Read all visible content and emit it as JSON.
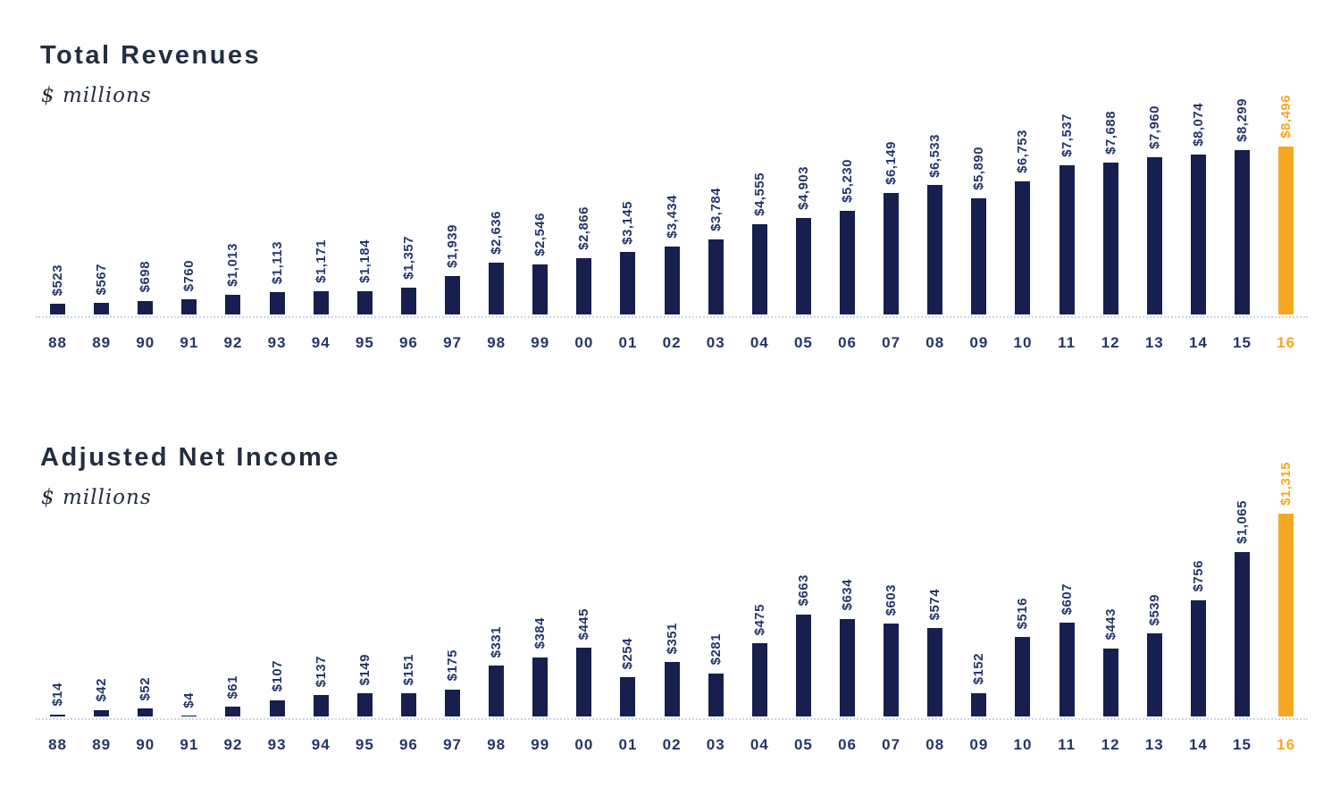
{
  "colors": {
    "bar_navy": "#161f4e",
    "label_navy": "#25356b",
    "highlight_orange": "#f6a722",
    "baseline_dots": "#c7d7e6",
    "title_text": "#232e42",
    "background": "#ffffff"
  },
  "chart_data": [
    {
      "type": "bar",
      "title": "Total Revenues",
      "subtitle": "$ millions",
      "categories": [
        "88",
        "89",
        "90",
        "91",
        "92",
        "93",
        "94",
        "95",
        "96",
        "97",
        "98",
        "99",
        "00",
        "01",
        "02",
        "03",
        "04",
        "05",
        "06",
        "07",
        "08",
        "09",
        "10",
        "11",
        "12",
        "13",
        "14",
        "15",
        "16"
      ],
      "values": [
        523,
        567,
        698,
        760,
        1013,
        1113,
        1171,
        1184,
        1357,
        1939,
        2636,
        2546,
        2866,
        3145,
        3434,
        3784,
        4555,
        4903,
        5230,
        6149,
        6533,
        5890,
        6753,
        7537,
        7688,
        7960,
        8074,
        8299,
        8496
      ],
      "value_labels": [
        "$523",
        "$567",
        "$698",
        "$760",
        "$1,013",
        "$1,113",
        "$1,171",
        "$1,184",
        "$1,357",
        "$1,939",
        "$2,636",
        "$2,546",
        "$2,866",
        "$3,145",
        "$3,434",
        "$3,784",
        "$4,555",
        "$4,903",
        "$5,230",
        "$6,149",
        "$6,533",
        "$5,890",
        "$6,753",
        "$7,537",
        "$7,688",
        "$7,960",
        "$8,074",
        "$8,299",
        "$8,496"
      ],
      "highlight_index": 28,
      "xlabel": "",
      "ylabel": "$ millions",
      "ylim": [
        0,
        8500
      ],
      "grid": false,
      "legend": "none",
      "value_labels_rotated_90": true
    },
    {
      "type": "bar",
      "title": "Adjusted Net Income",
      "subtitle": "$ millions",
      "categories": [
        "88",
        "89",
        "90",
        "91",
        "92",
        "93",
        "94",
        "95",
        "96",
        "97",
        "98",
        "99",
        "00",
        "01",
        "02",
        "03",
        "04",
        "05",
        "06",
        "07",
        "08",
        "09",
        "10",
        "11",
        "12",
        "13",
        "14",
        "15",
        "16"
      ],
      "values": [
        14,
        42,
        52,
        4,
        61,
        107,
        137,
        149,
        151,
        175,
        331,
        384,
        445,
        254,
        351,
        281,
        475,
        663,
        634,
        603,
        574,
        152,
        516,
        607,
        443,
        539,
        756,
        1065,
        1315
      ],
      "value_labels": [
        "$14",
        "$42",
        "$52",
        "$4",
        "$61",
        "$107",
        "$137",
        "$149",
        "$151",
        "$175",
        "$331",
        "$384",
        "$445",
        "$254",
        "$351",
        "$281",
        "$475",
        "$663",
        "$634",
        "$603",
        "$574",
        "$152",
        "$516",
        "$607",
        "$443",
        "$539",
        "$756",
        "$1,065",
        "$1,315"
      ],
      "highlight_index": 28,
      "xlabel": "",
      "ylabel": "$ millions",
      "ylim": [
        0,
        1320
      ],
      "grid": false,
      "legend": "none",
      "value_labels_rotated_90": true
    }
  ]
}
